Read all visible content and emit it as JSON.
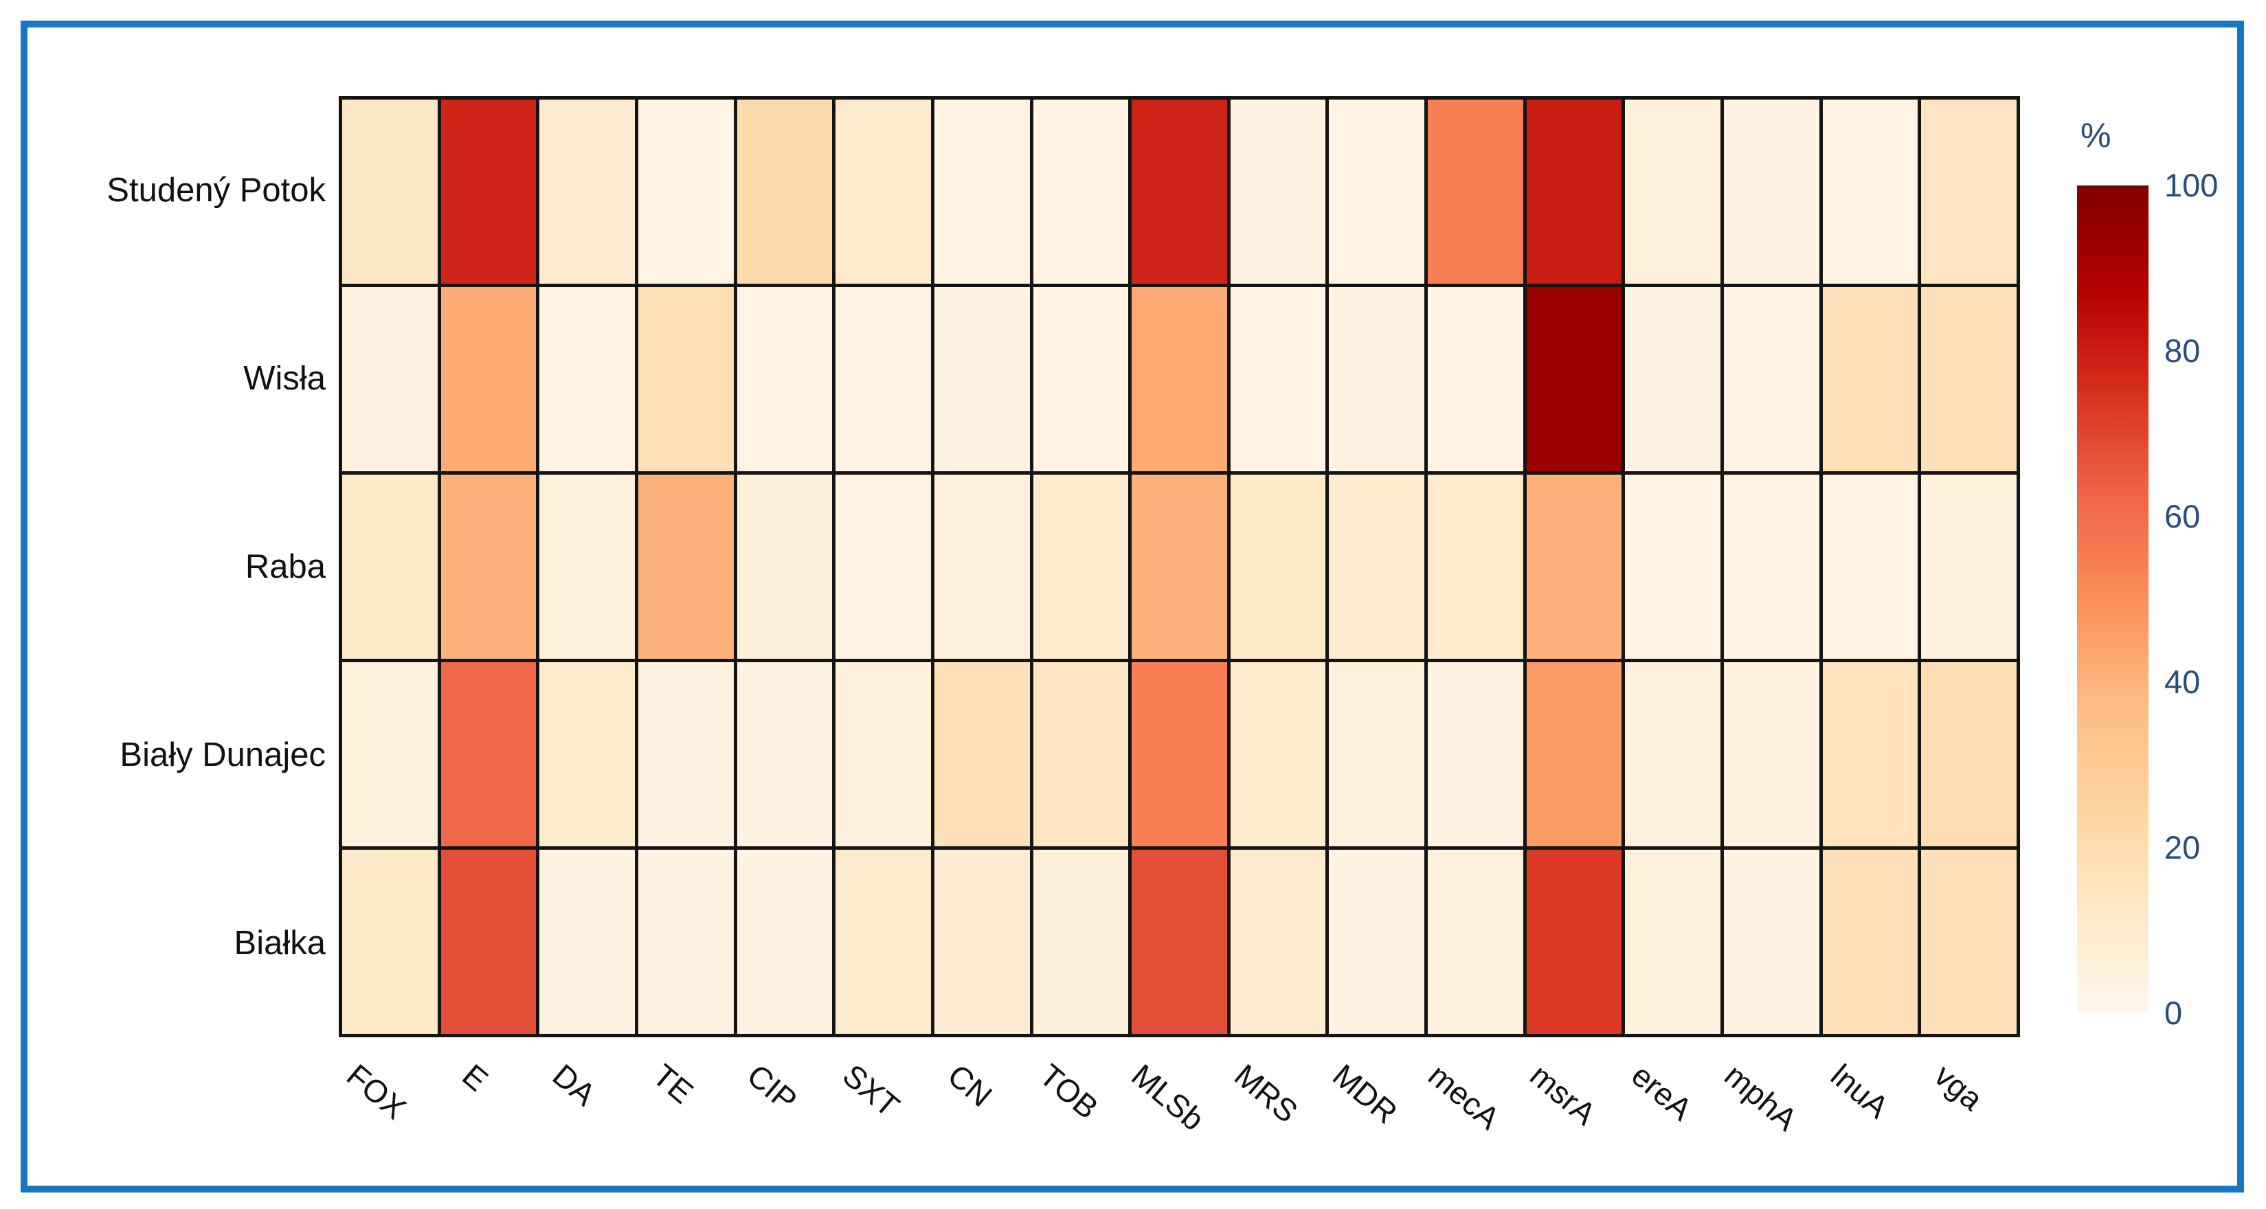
{
  "figure": {
    "border_color": "#1a75c2",
    "background_color": "#ffffff",
    "gridline_color": "#141414",
    "axis_label_color": "#111111",
    "colorbar_text_color": "#2a4b7c"
  },
  "chart_data": {
    "type": "heatmap",
    "title": "",
    "xlabel": "",
    "ylabel": "",
    "x_categories": [
      "FOX",
      "E",
      "DA",
      "TE",
      "CIP",
      "SXT",
      "CN",
      "TOB",
      "MLSb",
      "MRS",
      "MDR",
      "mecA",
      "msrA",
      "ereA",
      "mphA",
      "lnuA",
      "vga"
    ],
    "y_categories": [
      "Studený Potok",
      "Wisła",
      "Raba",
      "Biały Dunajec",
      "Białka"
    ],
    "values_percent": [
      [
        13,
        78,
        10,
        3,
        21,
        11,
        3,
        3,
        78,
        4,
        3,
        55,
        80,
        6,
        4,
        3,
        15
      ],
      [
        4,
        42,
        3,
        18,
        3,
        3,
        4,
        3,
        42,
        3,
        4,
        3,
        93,
        4,
        3,
        17,
        17
      ],
      [
        12,
        40,
        6,
        40,
        7,
        3,
        6,
        11,
        40,
        12,
        10,
        11,
        40,
        3,
        3,
        3,
        5
      ],
      [
        5,
        62,
        11,
        4,
        4,
        6,
        17,
        14,
        54,
        11,
        6,
        4,
        46,
        6,
        5,
        16,
        19
      ],
      [
        12,
        68,
        4,
        4,
        4,
        11,
        9,
        7,
        68,
        10,
        4,
        6,
        73,
        5,
        4,
        17,
        17
      ]
    ],
    "value_range": [
      0,
      100
    ],
    "grid_on": true,
    "colorbar": {
      "title": "%",
      "ticks": [
        0,
        20,
        40,
        60,
        80,
        100
      ],
      "min": 0,
      "max": 100,
      "position": "right"
    },
    "colorscale": [
      {
        "t": 0.0,
        "c": "#fff7ec"
      },
      {
        "t": 0.125,
        "c": "#fee8c8"
      },
      {
        "t": 0.25,
        "c": "#fdd49e"
      },
      {
        "t": 0.375,
        "c": "#fdbb84"
      },
      {
        "t": 0.5,
        "c": "#fc8d59"
      },
      {
        "t": 0.625,
        "c": "#ef6548"
      },
      {
        "t": 0.75,
        "c": "#d7301f"
      },
      {
        "t": 0.875,
        "c": "#b30000"
      },
      {
        "t": 1.0,
        "c": "#7f0000"
      }
    ]
  }
}
